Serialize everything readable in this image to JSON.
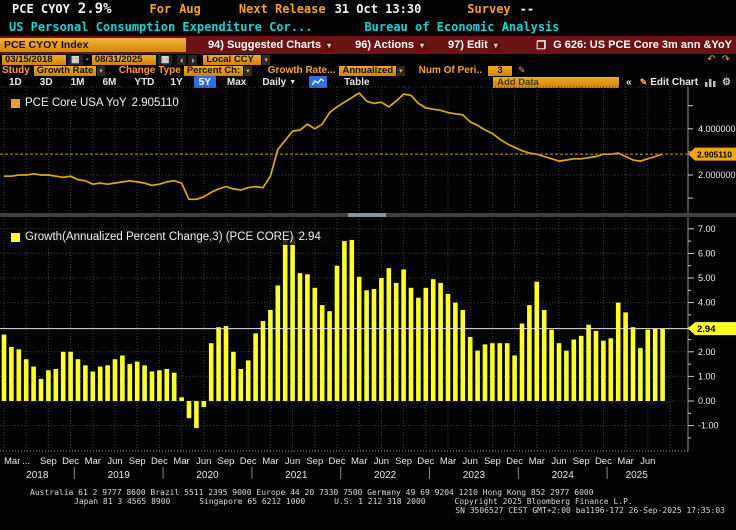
{
  "header": {
    "ticker": "PCE CYOY",
    "last_value": "2.9%",
    "for_label": "For",
    "for_value": "Aug",
    "next_release_label": "Next Release",
    "next_release_value": "31 Oct 13:30",
    "survey_label": "Survey",
    "survey_value": "--",
    "description": "US Personal Consumption Expenditure Cor...",
    "source": "Bureau of Economic Analysis"
  },
  "toolbar": {
    "security": "PCE CYOY Index",
    "menu_suggested": "94) Suggested Charts",
    "menu_actions": "96) Actions",
    "menu_edit": "97) Edit",
    "chart_id": "G 626: US PCE Core 3m ann &YoY"
  },
  "controls": {
    "date_from": "03/15/2018",
    "date_sep": "-",
    "date_to": "08/31/2025",
    "currency": "Local CCY",
    "study_label": "Study",
    "study_value": "Growth Rate",
    "change_type_label": "Change Type",
    "change_type_value": "Percent Ch:",
    "growth_label": "Growth Rate...",
    "growth_value": "Annualized",
    "periods_label": "Num Of Peri..",
    "periods_value": "3"
  },
  "tabs": {
    "ranges": [
      "1D",
      "3D",
      "1M",
      "6M",
      "YTD",
      "1Y",
      "5Y",
      "Max"
    ],
    "selected": "5Y",
    "frequency": "Daily",
    "table_label": "Table",
    "add_data": "Add Data",
    "collapse": "«",
    "edit_chart": "Edit Chart"
  },
  "chart_data": [
    {
      "type": "line",
      "title": "PCE Core USA YoY",
      "last_label": "2.905110",
      "last_value": 2.90511,
      "color": "#d9ab11",
      "start_month": "2018-03",
      "frequency": "monthly",
      "ylim": [
        0.35,
        5.85
      ],
      "grid": true,
      "legend_position": "top-left",
      "y_ticks": [
        {
          "v": 4,
          "label": "4.000000"
        },
        {
          "v": 2,
          "label": "2.000000"
        }
      ],
      "values": [
        1.95,
        1.95,
        2.0,
        2.0,
        2.05,
        2.0,
        2.0,
        1.95,
        1.9,
        1.95,
        1.8,
        1.75,
        1.6,
        1.65,
        1.6,
        1.65,
        1.7,
        1.75,
        1.7,
        1.65,
        1.55,
        1.6,
        1.7,
        1.75,
        1.65,
        0.95,
        0.95,
        1.05,
        1.25,
        1.4,
        1.5,
        1.4,
        1.35,
        1.45,
        1.5,
        1.45,
        1.95,
        3.1,
        3.5,
        3.9,
        3.95,
        4.2,
        4.0,
        4.2,
        4.7,
        4.95,
        5.15,
        5.35,
        5.55,
        5.2,
        5.1,
        5.15,
        4.95,
        5.2,
        5.5,
        5.45,
        5.1,
        4.9,
        4.85,
        4.8,
        4.7,
        4.65,
        4.6,
        4.3,
        4.15,
        3.95,
        3.8,
        3.55,
        3.35,
        3.2,
        3.05,
        2.95,
        2.9,
        2.8,
        2.7,
        2.6,
        2.65,
        2.7,
        2.7,
        2.75,
        2.8,
        2.9,
        2.9,
        2.95,
        2.8,
        2.65,
        2.6,
        2.7,
        2.8,
        2.905
      ]
    },
    {
      "type": "bar",
      "title": "Growth(Annualized Percent Change,3) (PCE CORE)",
      "last_label": "2.94",
      "last_value": 2.94,
      "color": "#ffff29",
      "start_month": "2018-03",
      "frequency": "monthly",
      "ylim": [
        -2.1,
        7.4
      ],
      "grid": true,
      "legend_position": "top-left",
      "y_ticks": [
        {
          "v": 7,
          "label": "7.00"
        },
        {
          "v": 6,
          "label": "6.00"
        },
        {
          "v": 5,
          "label": "5.00"
        },
        {
          "v": 4,
          "label": "4.00"
        },
        {
          "v": 2,
          "label": "2.00"
        },
        {
          "v": 1,
          "label": "1.00"
        },
        {
          "v": 0,
          "label": "0.00"
        },
        {
          "v": -1,
          "label": "-1.00"
        }
      ],
      "values": [
        2.7,
        2.2,
        2.1,
        1.7,
        1.4,
        0.9,
        1.25,
        1.3,
        2.0,
        2.0,
        1.7,
        1.45,
        1.2,
        1.4,
        1.45,
        1.7,
        1.85,
        1.5,
        1.6,
        1.45,
        1.2,
        1.25,
        1.3,
        1.15,
        0.15,
        -0.7,
        -1.1,
        -0.25,
        2.35,
        3.0,
        3.05,
        2.0,
        1.3,
        1.65,
        2.75,
        3.25,
        3.7,
        4.7,
        6.6,
        6.7,
        5.2,
        5.15,
        4.6,
        3.9,
        3.65,
        5.5,
        6.5,
        6.55,
        5.05,
        4.5,
        4.55,
        5.0,
        5.4,
        4.8,
        5.35,
        4.6,
        4.2,
        4.6,
        4.95,
        4.8,
        4.35,
        4.0,
        3.7,
        2.6,
        2.05,
        2.3,
        2.35,
        2.35,
        2.35,
        1.85,
        3.15,
        3.9,
        4.85,
        3.7,
        2.9,
        2.35,
        2.05,
        2.5,
        2.65,
        3.1,
        2.85,
        2.45,
        2.55,
        4.0,
        3.6,
        3.0,
        2.15,
        2.9,
        2.95,
        2.94
      ]
    }
  ],
  "x_axis": {
    "quarter_labels": [
      "Mar",
      "...",
      "Sep",
      "Dec",
      "Mar",
      "Jun",
      "Sep",
      "Dec",
      "Mar",
      "Jun",
      "Sep",
      "Dec",
      "Mar",
      "Jun",
      "Sep",
      "Dec",
      "Mar",
      "Jun",
      "Sep",
      "Dec",
      "Mar",
      "Jun",
      "Sep",
      "Dec",
      "Mar",
      "Jun",
      "Sep",
      "Dec",
      "Mar",
      "Jun"
    ],
    "years": [
      {
        "label": "2018",
        "months": 10
      },
      {
        "label": "2019",
        "months": 12
      },
      {
        "label": "2020",
        "months": 12
      },
      {
        "label": "2021",
        "months": 12
      },
      {
        "label": "2022",
        "months": 12
      },
      {
        "label": "2023",
        "months": 12
      },
      {
        "label": "2024",
        "months": 12
      },
      {
        "label": "2025",
        "months": 8
      }
    ]
  },
  "footer": {
    "line1": "Australia 61 2 9777 8600 Brazil 5511 2395 9000 Europe 44 20 7330 7500 Germany 49 69 9204 1210 Hong Kong 852 2977 6000",
    "line2": "Japan 81 3 4565 8900      Singapore 65 6212 1000      U.S. 1 212 318 2000      Copyright 2025 Bloomberg Finance L.P.",
    "line3": "SN 3506527 CEST GMT+2:00 ba1196-172 26-Sep-2025 17:35:03"
  }
}
